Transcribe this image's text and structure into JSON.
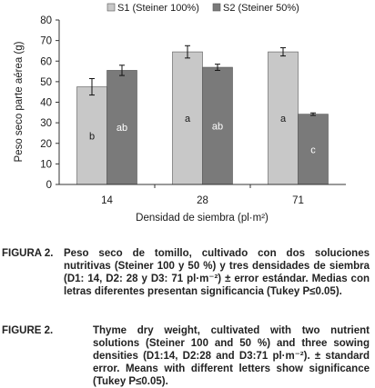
{
  "chart_data": {
    "type": "bar",
    "ylabel": "Peso seco parte aérea (g)",
    "xlabel": "Densidad de siembra (pl·m²)",
    "ylim": [
      0,
      80
    ],
    "yticks": [
      0,
      10,
      20,
      30,
      40,
      50,
      60,
      70,
      80
    ],
    "categories": [
      "14",
      "28",
      "71"
    ],
    "legend_position": "top",
    "series": [
      {
        "name": "S1 (Steiner 100%)",
        "color": "#c8c8c8",
        "values": [
          47.5,
          64.5,
          64.5
        ],
        "errors": [
          4,
          3,
          2
        ],
        "letters": [
          "b",
          "a",
          "a"
        ]
      },
      {
        "name": "S2 (Steiner 50%)",
        "color": "#7a7a7a",
        "values": [
          55.5,
          57,
          34.2
        ],
        "errors": [
          2.5,
          1.5,
          0.6
        ],
        "letters": [
          "ab",
          "ab",
          "c"
        ]
      }
    ]
  },
  "caption_es": {
    "label": "FIGURA  2.",
    "text": "Peso seco de tomillo, cultivado con dos soluciones nutritivas (Steiner 100 y  50 %) y tres densidades de siembra (D1: 14, D2: 28  y D3: 71 pl·m⁻²) ± error estándar. Medias con letras diferentes presentan significancia (Tukey P≤0.05)."
  },
  "caption_en": {
    "label": "FIGURE 2.",
    "text": "Thyme dry weight, cultivated with two nutrient solutions (Steiner 100 and 50 %) and three sowing densities (D1:14, D2:28 and D3:71 pl·m⁻²). ± standard error. Means with different letters show significance (Tukey P≤0.05)."
  }
}
